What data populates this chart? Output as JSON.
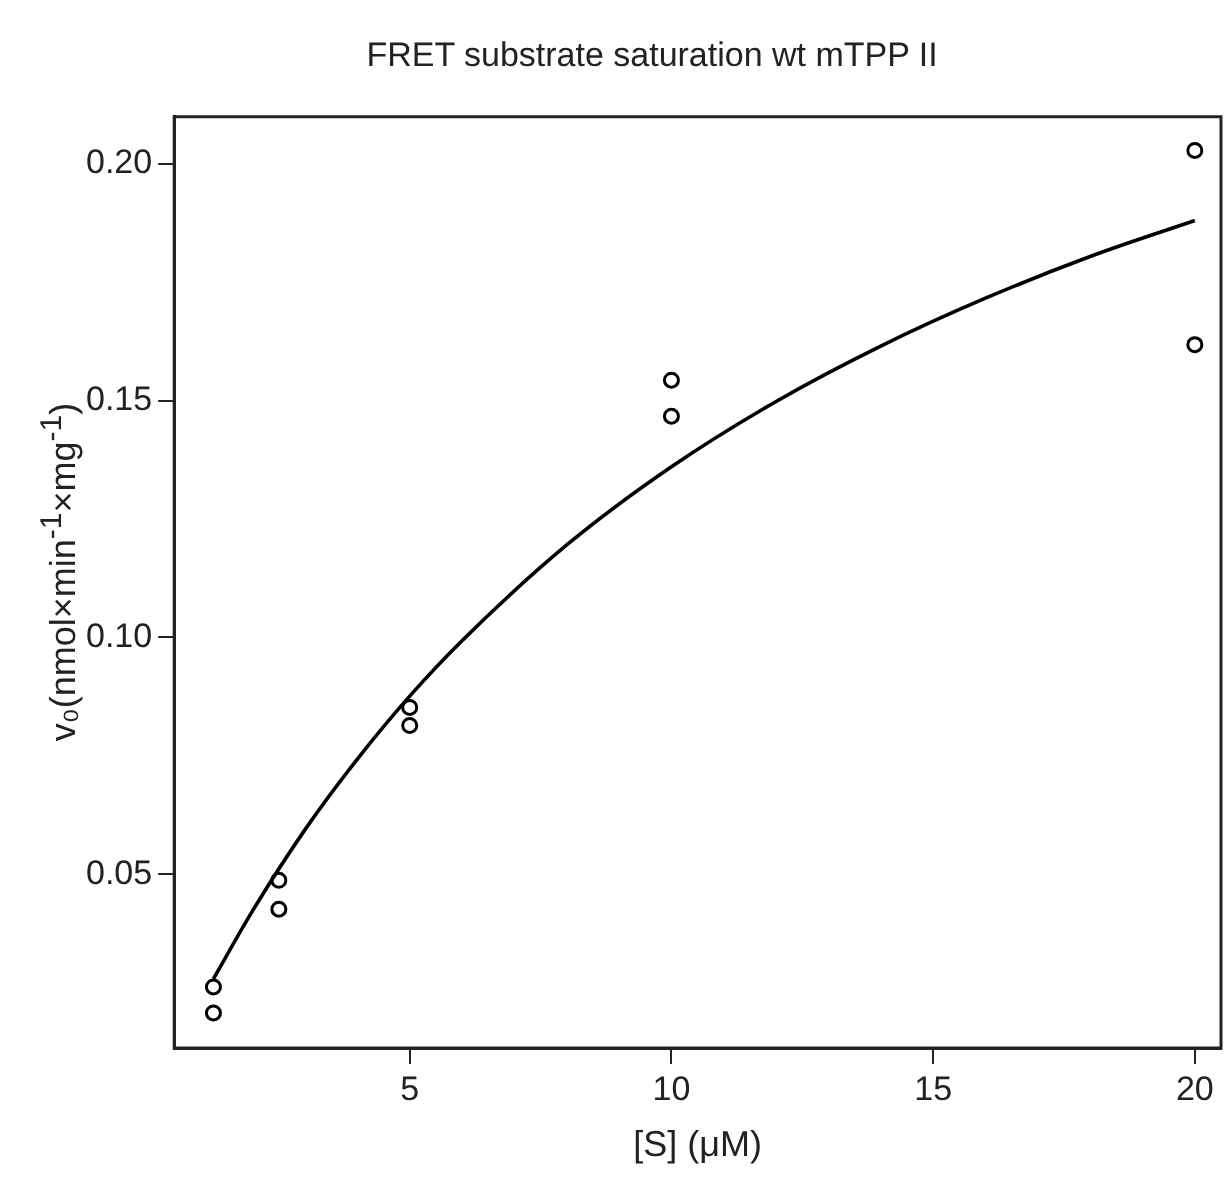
{
  "chart_data": {
    "type": "scatter",
    "title": "FRET substrate saturation wt mTPP II",
    "xlabel": "[S] (μM)",
    "ylabel": "v₀(nmol×min$^{-1}$×mg$^{-1}$)",
    "xlim": [
      0.5,
      20.5
    ],
    "xticks": [
      5,
      10,
      15,
      20
    ],
    "ylim": [
      0.0133,
      0.2099
    ],
    "yticks": [
      {
        "value": 0.05,
        "label": "0.05"
      },
      {
        "value": 0.1,
        "label": "0.10"
      },
      {
        "value": 0.15,
        "label": "0.15"
      },
      {
        "value": 0.2,
        "label": "0.20"
      }
    ],
    "grid": false,
    "legend": false,
    "series": [
      {
        "color": "#000000",
        "marker": "circle",
        "x": [
          1.25,
          1.25,
          2.5,
          2.5,
          5,
          5,
          10,
          10,
          20,
          20
        ],
        "values": [
          0.0262,
          0.0207,
          0.0487,
          0.0426,
          0.0852,
          0.0814,
          0.1543,
          0.1467,
          0.2028,
          0.1618
        ]
      },
      {
        "type": "line",
        "color": "#000000",
        "marker": "none",
        "line_style": "solid",
        "x": [
          1.25,
          2,
          3,
          4,
          5,
          6,
          8,
          10,
          12,
          14,
          16,
          18,
          20
        ],
        "values": [
          0.0279,
          0.0423,
          0.0594,
          0.0743,
          0.0876,
          0.0993,
          0.1195,
          0.136,
          0.1498,
          0.1615,
          0.1716,
          0.1804,
          0.188
        ]
      }
    ]
  }
}
